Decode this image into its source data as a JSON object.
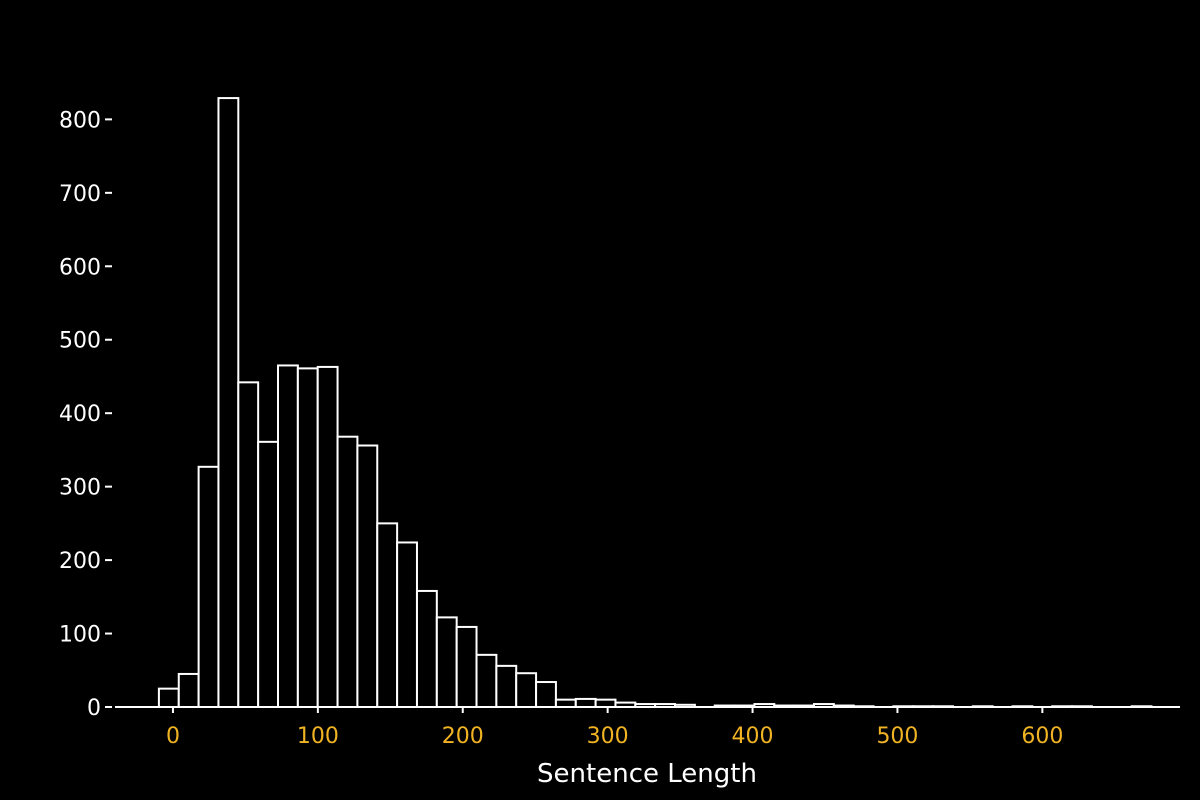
{
  "chart_data": {
    "type": "bar",
    "subtype": "histogram",
    "title": "",
    "xlabel": "Sentence Length",
    "ylabel": "",
    "xlim": [
      -40,
      695
    ],
    "ylim": [
      0,
      840
    ],
    "grid": false,
    "legend": "none",
    "bin_width": 13.7,
    "bin_start": -9.7,
    "x_ticks": [
      0,
      100,
      200,
      300,
      400,
      500,
      600
    ],
    "x_tick_labels": [
      "0",
      "100",
      "200",
      "300",
      "400",
      "500",
      "600"
    ],
    "y_ticks": [
      0,
      100,
      200,
      300,
      400,
      500,
      600,
      700,
      800
    ],
    "y_tick_labels": [
      "0",
      "100",
      "200",
      "300",
      "400",
      "500",
      "600",
      "700",
      "800"
    ],
    "values": [
      25,
      45,
      327,
      829,
      442,
      361,
      465,
      461,
      463,
      368,
      356,
      250,
      224,
      158,
      122,
      109,
      71,
      56,
      46,
      34,
      10,
      11,
      10,
      6,
      4,
      4,
      3,
      0,
      2,
      2,
      4,
      2,
      2,
      4,
      2,
      1,
      0,
      1,
      1,
      1,
      0,
      1,
      0,
      1,
      0,
      1,
      1,
      0,
      0,
      1,
      0
    ]
  },
  "colors": {
    "background": "#000000",
    "bar_stroke": "#ffffff",
    "bar_fill": "#000000",
    "axis": "#ffffff",
    "x_tick_label": "#f0b323",
    "y_tick_label": "#ffffff",
    "axis_title": "#ffffff"
  }
}
